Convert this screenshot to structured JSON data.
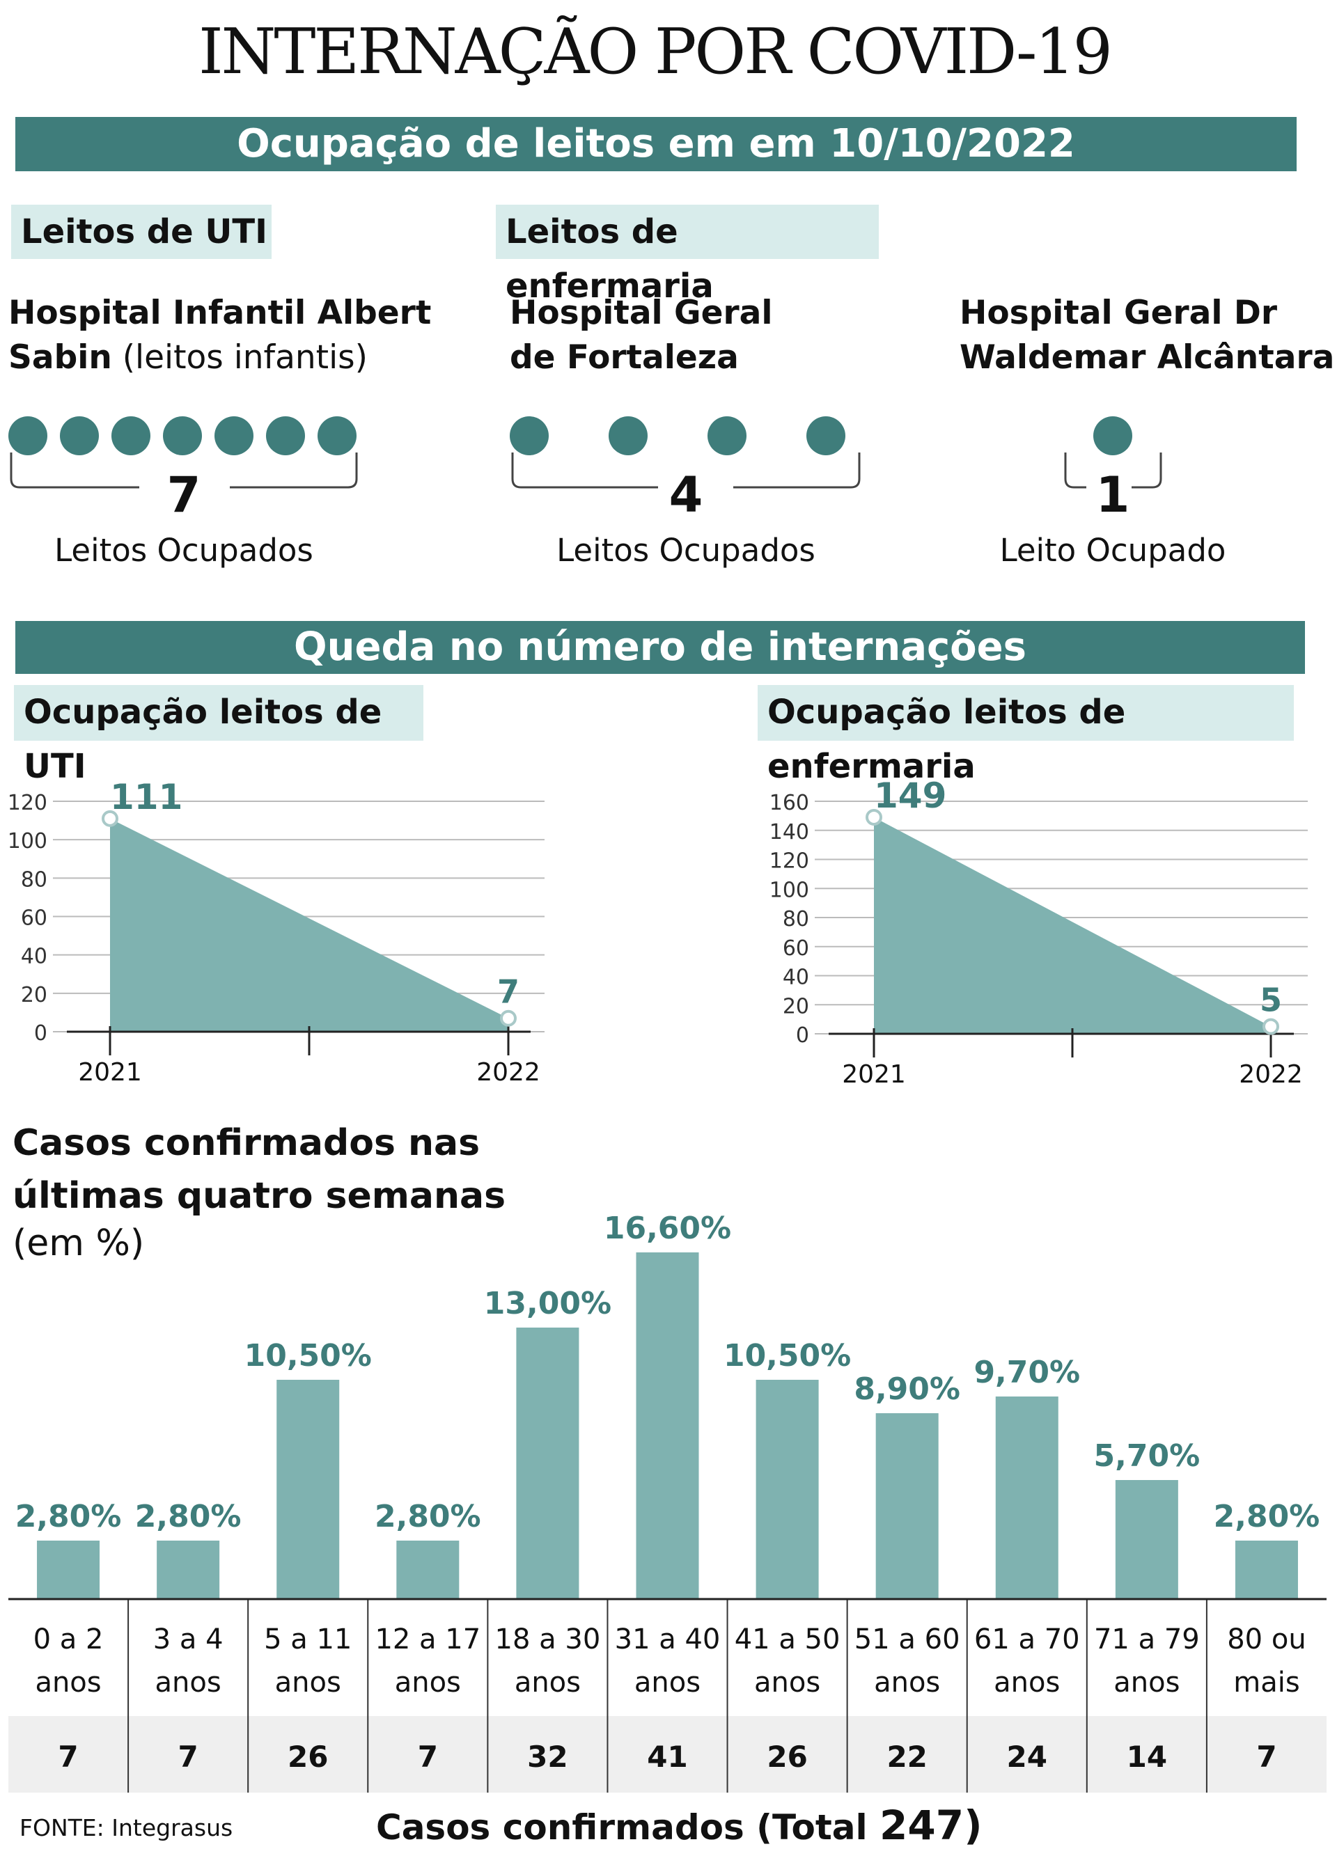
{
  "title": "INTERNAÇÃO POR COVID-19",
  "section1": {
    "banner": "Ocupação de leitos em em 10/10/2022",
    "uti_tag": "Leitos de UTI",
    "enf_tag": "Leitos de enfermaria",
    "hospitals": [
      {
        "name_line1": "Hospital Infantil Albert",
        "name_line2_bold": "Sabin",
        "name_line2_light": " (leitos infantis)",
        "count": 7,
        "count_label": "7",
        "label": "Leitos Ocupados"
      },
      {
        "name_line1": "Hospital Geral",
        "name_line2_bold": "de Fortaleza",
        "name_line2_light": "",
        "count": 4,
        "count_label": "4",
        "label": "Leitos Ocupados"
      },
      {
        "name_line1": "Hospital Geral Dr",
        "name_line2_bold": "Waldemar Alcântara",
        "name_line2_light": "",
        "count": 1,
        "count_label": "1",
        "label": "Leito Ocupado"
      }
    ]
  },
  "section2": {
    "banner": "Queda no número de internações",
    "uti_tag": "Ocupação leitos de UTI",
    "enf_tag": "Ocupação leitos de enfermaria"
  },
  "section3": {
    "heading_line1": "Casos confirmados nas",
    "heading_line2": "últimas quatro semanas",
    "heading_line3": "(em %)",
    "total_label": "Casos confirmados (Total",
    "total_value": "247)"
  },
  "source": "FONTE: Integrasus",
  "colors": {
    "accent": "#3f7d7b",
    "area": "#7fb2b0",
    "bar": "#7fb2b0",
    "label": "#3f7d7b",
    "tag_bg": "#d8eceb",
    "count_bg": "#efefef"
  },
  "chart_data": [
    {
      "type": "area",
      "title": "Ocupação leitos de UTI",
      "x": [
        "2021",
        "2022"
      ],
      "values": [
        111,
        7
      ],
      "value_labels": [
        "111",
        "7"
      ],
      "yticks": [
        "0",
        "20",
        "40",
        "60",
        "80",
        "100",
        "120"
      ],
      "ylim": [
        0,
        120
      ]
    },
    {
      "type": "area",
      "title": "Ocupação leitos de enfermaria",
      "x": [
        "2021",
        "2022"
      ],
      "values": [
        149,
        5
      ],
      "value_labels": [
        "149",
        "5"
      ],
      "yticks": [
        "0",
        "20",
        "40",
        "60",
        "80",
        "100",
        "120",
        "140",
        "160"
      ],
      "ylim": [
        0,
        160
      ]
    },
    {
      "type": "bar",
      "title": "Casos confirmados nas últimas quatro semanas (em %)",
      "categories": [
        {
          "line1": "0 a 2",
          "line2": "anos"
        },
        {
          "line1": "3 a 4",
          "line2": "anos"
        },
        {
          "line1": "5 a 11",
          "line2": "anos"
        },
        {
          "line1": "12 a 17",
          "line2": "anos"
        },
        {
          "line1": "18 a 30",
          "line2": "anos"
        },
        {
          "line1": "31 a 40",
          "line2": "anos"
        },
        {
          "line1": "41 a 50",
          "line2": "anos"
        },
        {
          "line1": "51 a 60",
          "line2": "anos"
        },
        {
          "line1": "61 a 70",
          "line2": "anos"
        },
        {
          "line1": "71 a 79",
          "line2": "anos"
        },
        {
          "line1": "80 ou",
          "line2": "mais"
        }
      ],
      "values": [
        2.8,
        2.8,
        10.5,
        2.8,
        13.0,
        16.6,
        10.5,
        8.9,
        9.7,
        5.7,
        2.8
      ],
      "value_labels": [
        "2,80%",
        "2,80%",
        "10,50%",
        "2,80%",
        "13,00%",
        "16,60%",
        "10,50%",
        "8,90%",
        "9,70%",
        "5,70%",
        "2,80%"
      ],
      "counts": [
        "7",
        "7",
        "26",
        "7",
        "32",
        "41",
        "26",
        "22",
        "24",
        "14",
        "7"
      ]
    }
  ]
}
